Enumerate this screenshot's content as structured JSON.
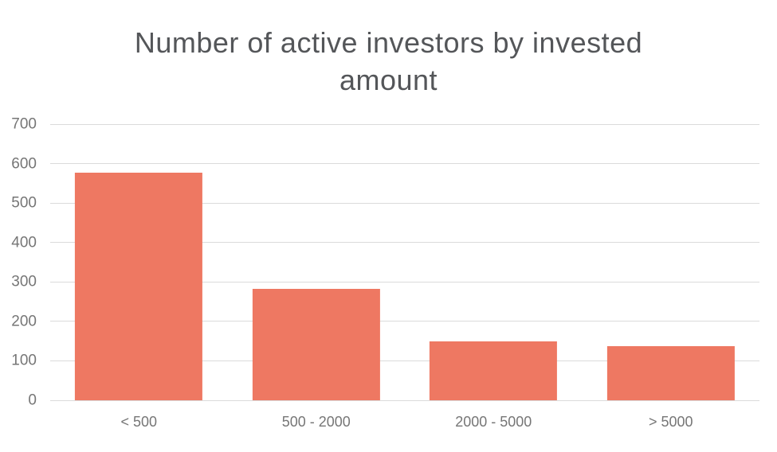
{
  "chart_data": {
    "type": "bar",
    "title": "Number of active investors by invested amount",
    "title_lines": [
      "Number of active investors by invested",
      "amount"
    ],
    "categories": [
      "< 500",
      "500 - 2000",
      "2000 - 5000",
      "> 5000"
    ],
    "values": [
      577,
      282,
      150,
      138
    ],
    "xlabel": "",
    "ylabel": "",
    "ylim": [
      0,
      700
    ],
    "yticks": [
      0,
      100,
      200,
      300,
      400,
      500,
      600,
      700
    ],
    "grid": true,
    "legend": "none",
    "colors": {
      "bar": "#EE7862",
      "gridline": "#DBDBDB",
      "tick_label": "#767676",
      "title": "#545659",
      "background": "#FFFFFF"
    }
  }
}
